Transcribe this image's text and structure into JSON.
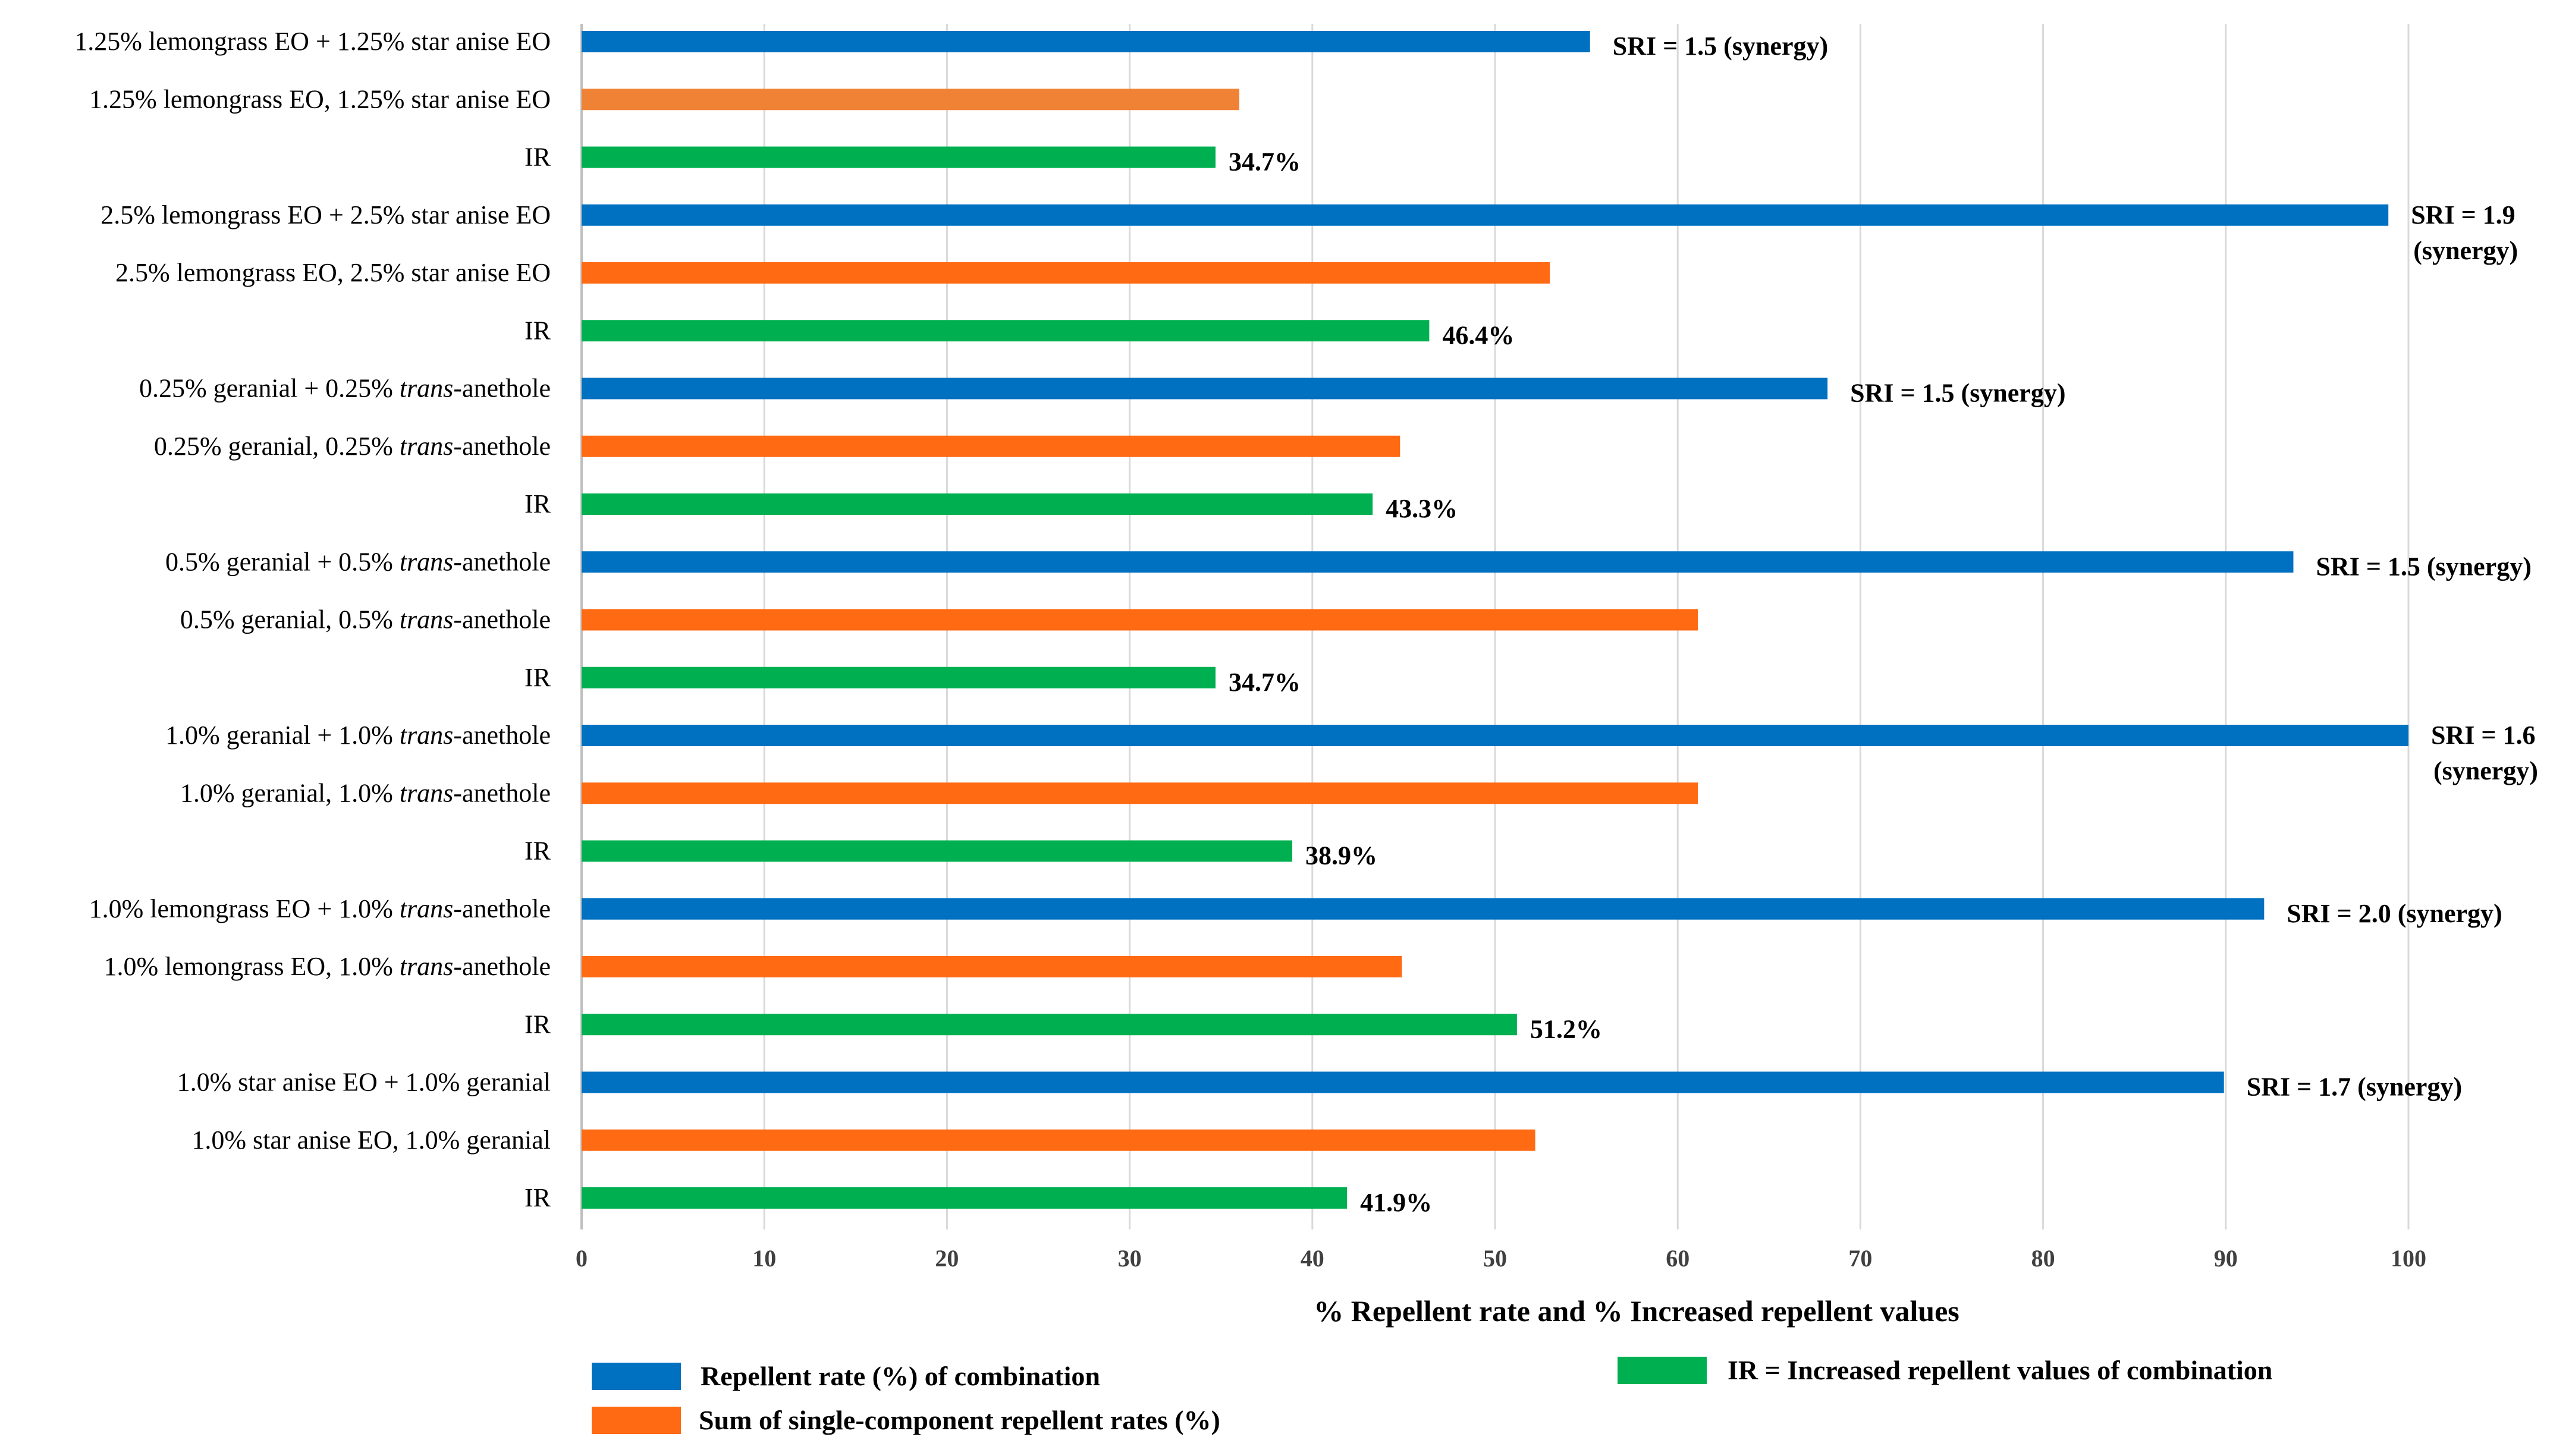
{
  "chart_data": {
    "type": "bar",
    "orientation": "horizontal",
    "title": "",
    "xlabel": "% Repellent rate and % Increased repellent values",
    "ylabel": "",
    "xlim": [
      0,
      100
    ],
    "xticks": [
      0,
      10,
      20,
      30,
      40,
      50,
      60,
      70,
      80,
      90,
      100
    ],
    "grid": true,
    "colors": {
      "combination": "#0070c0",
      "sum": "#ff6a13",
      "sum_first": "#f08236",
      "ir": "#00b050"
    },
    "rows": [
      {
        "label": "1.25% lemongrass EO + 1.25% star anise EO",
        "italic_part": "",
        "value": 55.2,
        "kind": "combination",
        "annotation": "SRI = 1.5 (synergy)",
        "annotation2": ""
      },
      {
        "label": "1.25% lemongrass EO, 1.25% star anise EO",
        "italic_part": "",
        "value": 36.0,
        "kind": "sum_first",
        "annotation": "",
        "annotation2": ""
      },
      {
        "label": "IR",
        "italic_part": "",
        "value": 34.7,
        "kind": "ir",
        "annotation": "34.7%",
        "annotation2": ""
      },
      {
        "label": "2.5% lemongrass EO + 2.5% star anise EO",
        "italic_part": "",
        "value": 98.9,
        "kind": "combination",
        "annotation": "SRI = 1.9",
        "annotation2": "(synergy)"
      },
      {
        "label": "2.5% lemongrass EO, 2.5% star anise EO",
        "italic_part": "",
        "value": 53.0,
        "kind": "sum",
        "annotation": "",
        "annotation2": ""
      },
      {
        "label": "IR",
        "italic_part": "",
        "value": 46.4,
        "kind": "ir",
        "annotation": "46.4%",
        "annotation2": ""
      },
      {
        "label": "0.25% geranial + 0.25% ",
        "italic_part": "trans",
        "label_tail": "-anethole",
        "value": 68.2,
        "kind": "combination",
        "annotation": "SRI = 1.5 (synergy)",
        "annotation2": ""
      },
      {
        "label": "0.25% geranial, 0.25% ",
        "italic_part": "trans",
        "label_tail": "-anethole",
        "value": 44.8,
        "kind": "sum",
        "annotation": "",
        "annotation2": ""
      },
      {
        "label": "IR",
        "italic_part": "",
        "value": 43.3,
        "kind": "ir",
        "annotation": "43.3%",
        "annotation2": ""
      },
      {
        "label": "0.5% geranial + 0.5% ",
        "italic_part": "trans",
        "label_tail": "-anethole",
        "value": 93.7,
        "kind": "combination",
        "annotation": "SRI = 1.5 (synergy)",
        "annotation2": ""
      },
      {
        "label": "0.5% geranial, 0.5% ",
        "italic_part": "trans",
        "label_tail": "-anethole",
        "value": 61.1,
        "kind": "sum",
        "annotation": "",
        "annotation2": ""
      },
      {
        "label": "IR",
        "italic_part": "",
        "value": 34.7,
        "kind": "ir",
        "annotation": "34.7%",
        "annotation2": ""
      },
      {
        "label": "1.0% geranial + 1.0% ",
        "italic_part": "trans",
        "label_tail": "-anethole",
        "value": 100.0,
        "kind": "combination",
        "annotation": "SRI = 1.6",
        "annotation2": "(synergy)"
      },
      {
        "label": "1.0% geranial, 1.0% ",
        "italic_part": "trans",
        "label_tail": "-anethole",
        "value": 61.1,
        "kind": "sum",
        "annotation": "",
        "annotation2": ""
      },
      {
        "label": "IR",
        "italic_part": "",
        "value": 38.9,
        "kind": "ir",
        "annotation": "38.9%",
        "annotation2": ""
      },
      {
        "label": "1.0% lemongrass EO + 1.0% ",
        "italic_part": "trans",
        "label_tail": "-anethole",
        "value": 92.1,
        "kind": "combination",
        "annotation": "SRI = 2.0 (synergy)",
        "annotation2": ""
      },
      {
        "label": "1.0% lemongrass EO, 1.0% ",
        "italic_part": "trans",
        "label_tail": "-anethole",
        "value": 44.9,
        "kind": "sum",
        "annotation": "",
        "annotation2": ""
      },
      {
        "label": "IR",
        "italic_part": "",
        "value": 51.2,
        "kind": "ir",
        "annotation": "51.2%",
        "annotation2": ""
      },
      {
        "label": "1.0% star anise EO + 1.0% geranial",
        "italic_part": "",
        "value": 89.9,
        "kind": "combination",
        "annotation": "SRI = 1.7 (synergy)",
        "annotation2": ""
      },
      {
        "label": "1.0% star anise EO, 1.0% geranial",
        "italic_part": "",
        "value": 52.2,
        "kind": "sum",
        "annotation": "",
        "annotation2": ""
      },
      {
        "label": "IR",
        "italic_part": "",
        "value": 41.9,
        "kind": "ir",
        "annotation": "41.9%",
        "annotation2": ""
      }
    ],
    "legend": [
      {
        "key": "combination",
        "label": "Repellent rate (%) of combination"
      },
      {
        "key": "sum",
        "label": "Sum of single-component repellent rates (%)"
      },
      {
        "key": "ir",
        "label": "IR = Increased repellent values of combination"
      }
    ]
  }
}
